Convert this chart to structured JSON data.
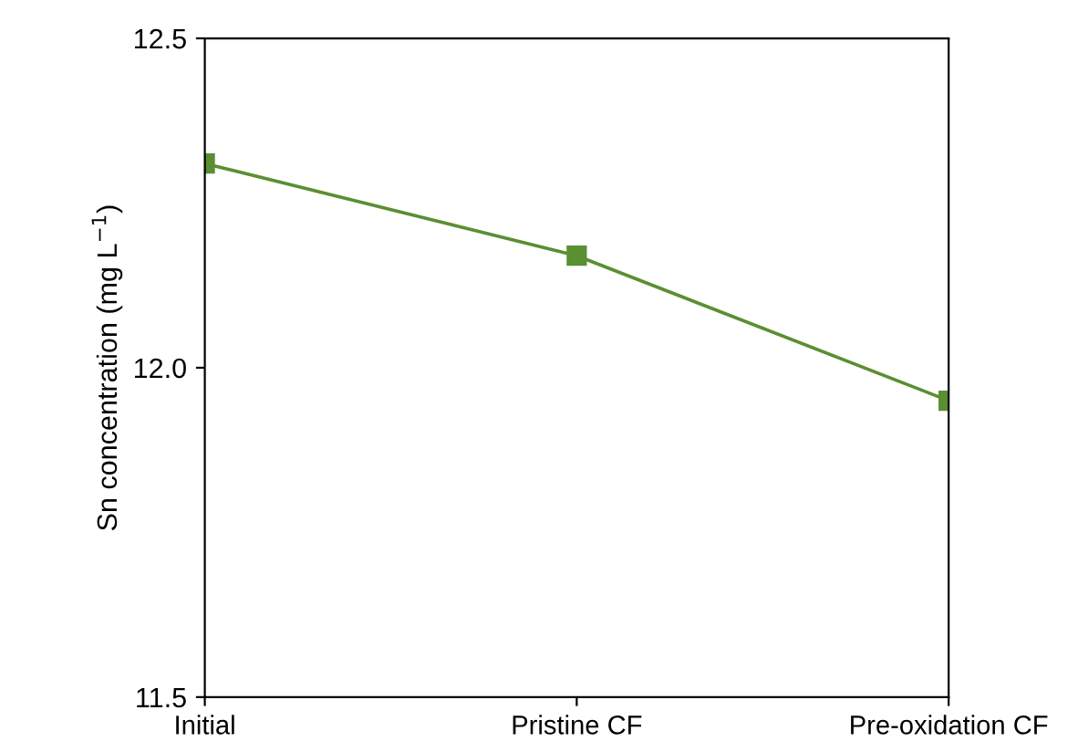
{
  "chart_data": {
    "type": "line",
    "ylabel": "Sn concentration (mg L$^{−1}$)",
    "categories": [
      "Initial",
      "Pristine CF",
      "Pre-oxidation CF"
    ],
    "series": [
      {
        "color": "#5a8f32",
        "values": [
          12.31,
          12.17,
          11.95
        ]
      }
    ],
    "ylim": [
      11.5,
      12.5
    ],
    "yticks": [
      11.5,
      {
        "value": 12,
        "label": "12.0"
      },
      12.5
    ],
    "marker": "square",
    "line_style": "solid",
    "grid": false,
    "legend": false
  }
}
